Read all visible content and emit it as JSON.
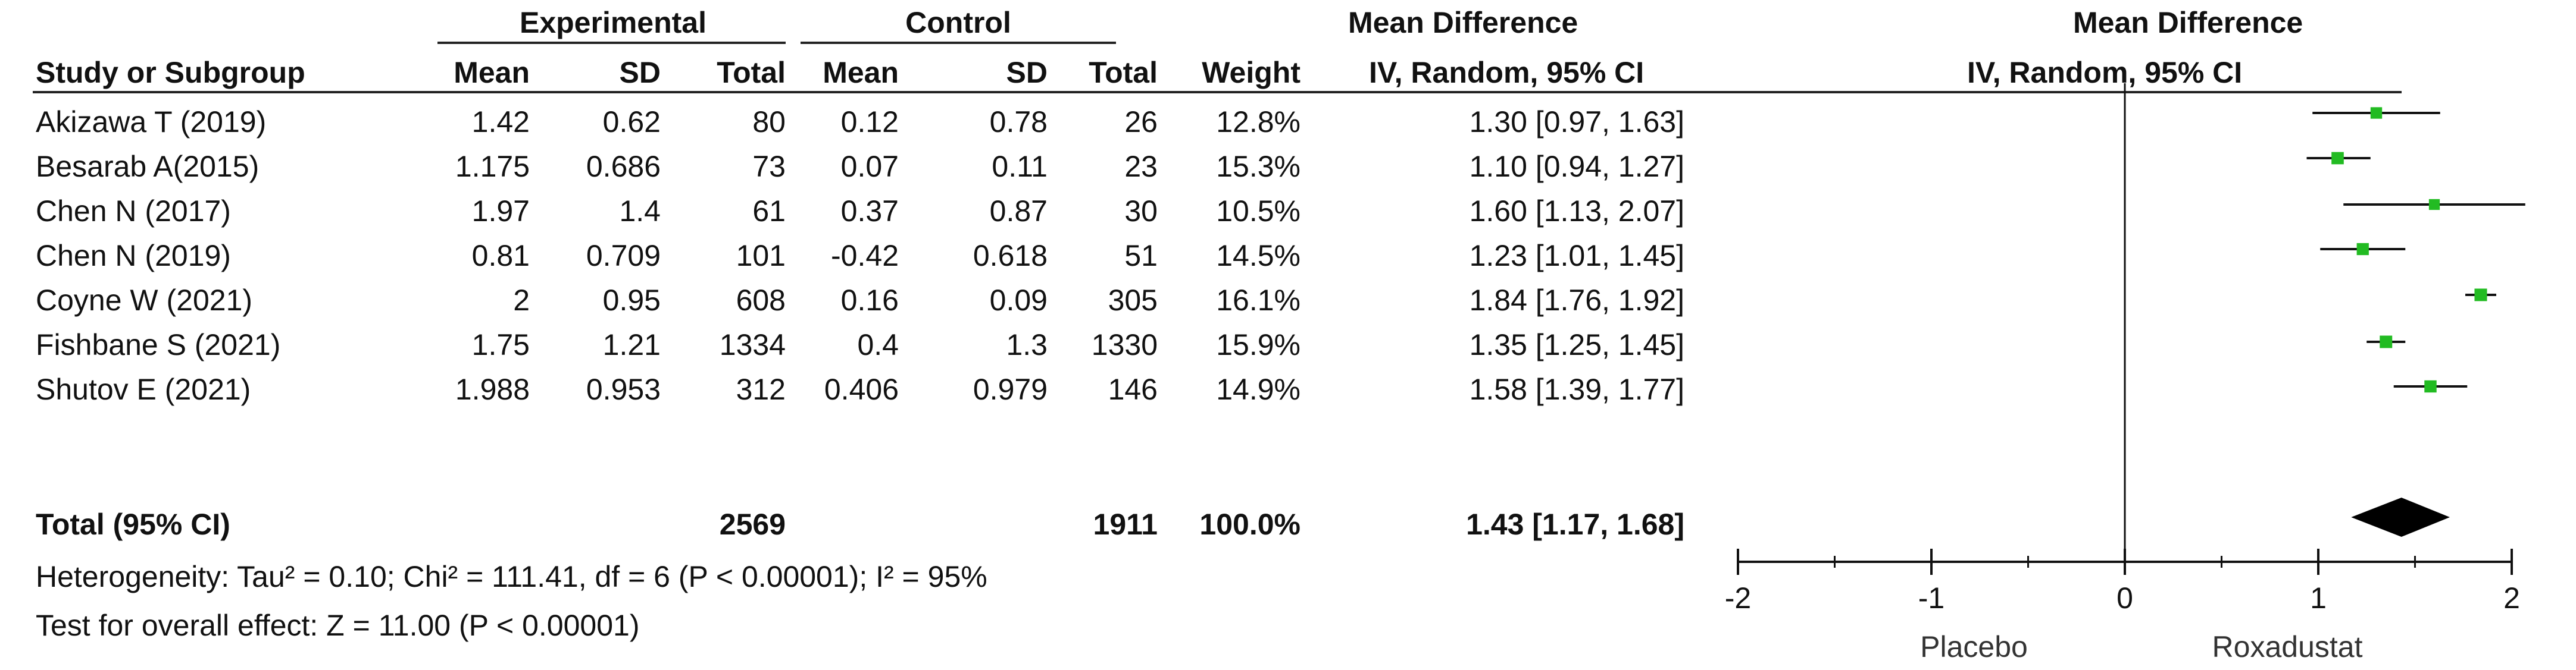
{
  "headers": {
    "group_experimental": "Experimental",
    "group_control": "Control",
    "effect_group": "Mean Difference",
    "study": "Study or Subgroup",
    "mean": "Mean",
    "sd": "SD",
    "total": "Total",
    "weight": "Weight",
    "effect_method": "IV, Random, 95% CI",
    "plot_group": "Mean Difference",
    "plot_method": "IV, Random, 95% CI"
  },
  "studies": [
    {
      "name": "Akizawa T (2019)",
      "exp_mean": "1.42",
      "exp_sd": "0.62",
      "exp_total": "80",
      "ctrl_mean": "0.12",
      "ctrl_sd": "0.78",
      "ctrl_total": "26",
      "weight": "12.8%",
      "ci_text": "1.30 [0.97, 1.63]"
    },
    {
      "name": "Besarab A(2015)",
      "exp_mean": "1.175",
      "exp_sd": "0.686",
      "exp_total": "73",
      "ctrl_mean": "0.07",
      "ctrl_sd": "0.11",
      "ctrl_total": "23",
      "weight": "15.3%",
      "ci_text": "1.10 [0.94, 1.27]"
    },
    {
      "name": "Chen N (2017)",
      "exp_mean": "1.97",
      "exp_sd": "1.4",
      "exp_total": "61",
      "ctrl_mean": "0.37",
      "ctrl_sd": "0.87",
      "ctrl_total": "30",
      "weight": "10.5%",
      "ci_text": "1.60 [1.13, 2.07]"
    },
    {
      "name": "Chen N (2019)",
      "exp_mean": "0.81",
      "exp_sd": "0.709",
      "exp_total": "101",
      "ctrl_mean": "-0.42",
      "ctrl_sd": "0.618",
      "ctrl_total": "51",
      "weight": "14.5%",
      "ci_text": "1.23 [1.01, 1.45]"
    },
    {
      "name": "Coyne W (2021)",
      "exp_mean": "2",
      "exp_sd": "0.95",
      "exp_total": "608",
      "ctrl_mean": "0.16",
      "ctrl_sd": "0.09",
      "ctrl_total": "305",
      "weight": "16.1%",
      "ci_text": "1.84 [1.76, 1.92]"
    },
    {
      "name": "Fishbane S (2021)",
      "exp_mean": "1.75",
      "exp_sd": "1.21",
      "exp_total": "1334",
      "ctrl_mean": "0.4",
      "ctrl_sd": "1.3",
      "ctrl_total": "1330",
      "weight": "15.9%",
      "ci_text": "1.35 [1.25, 1.45]"
    },
    {
      "name": "Shutov E (2021)",
      "exp_mean": "1.988",
      "exp_sd": "0.953",
      "exp_total": "312",
      "ctrl_mean": "0.406",
      "ctrl_sd": "0.979",
      "ctrl_total": "146",
      "weight": "14.9%",
      "ci_text": "1.58 [1.39, 1.77]"
    }
  ],
  "total_row": {
    "label": "Total (95% CI)",
    "exp_total": "2569",
    "ctrl_total": "1911",
    "weight": "100.0%",
    "ci_text": "1.43 [1.17, 1.68]"
  },
  "footer": {
    "heterogeneity": "Heterogeneity: Tau² = 0.10; Chi² = 111.41, df = 6 (P < 0.00001); I² = 95%",
    "overall_effect": "Test for overall effect: Z = 11.00 (P < 0.00001)"
  },
  "axis": {
    "favours_left": "Placebo",
    "favours_right": "Roxadustat"
  },
  "chart_data": {
    "type": "forest",
    "xlim": [
      -2,
      2
    ],
    "ticks": [
      -2,
      -1,
      0,
      1,
      2
    ],
    "tick_labels": [
      "-2",
      "-1",
      "0",
      "1",
      "2"
    ],
    "marker_color": "#22bb22",
    "diamond_color": "#000000",
    "points": [
      {
        "estimate": 1.3,
        "lower": 0.97,
        "upper": 1.63,
        "weight": 12.8
      },
      {
        "estimate": 1.1,
        "lower": 0.94,
        "upper": 1.27,
        "weight": 15.3
      },
      {
        "estimate": 1.6,
        "lower": 1.13,
        "upper": 2.07,
        "weight": 10.5
      },
      {
        "estimate": 1.23,
        "lower": 1.01,
        "upper": 1.45,
        "weight": 14.5
      },
      {
        "estimate": 1.84,
        "lower": 1.76,
        "upper": 1.92,
        "weight": 16.1
      },
      {
        "estimate": 1.35,
        "lower": 1.25,
        "upper": 1.45,
        "weight": 15.9
      },
      {
        "estimate": 1.58,
        "lower": 1.39,
        "upper": 1.77,
        "weight": 14.9
      }
    ],
    "pooled": {
      "estimate": 1.43,
      "lower": 1.17,
      "upper": 1.68
    }
  }
}
